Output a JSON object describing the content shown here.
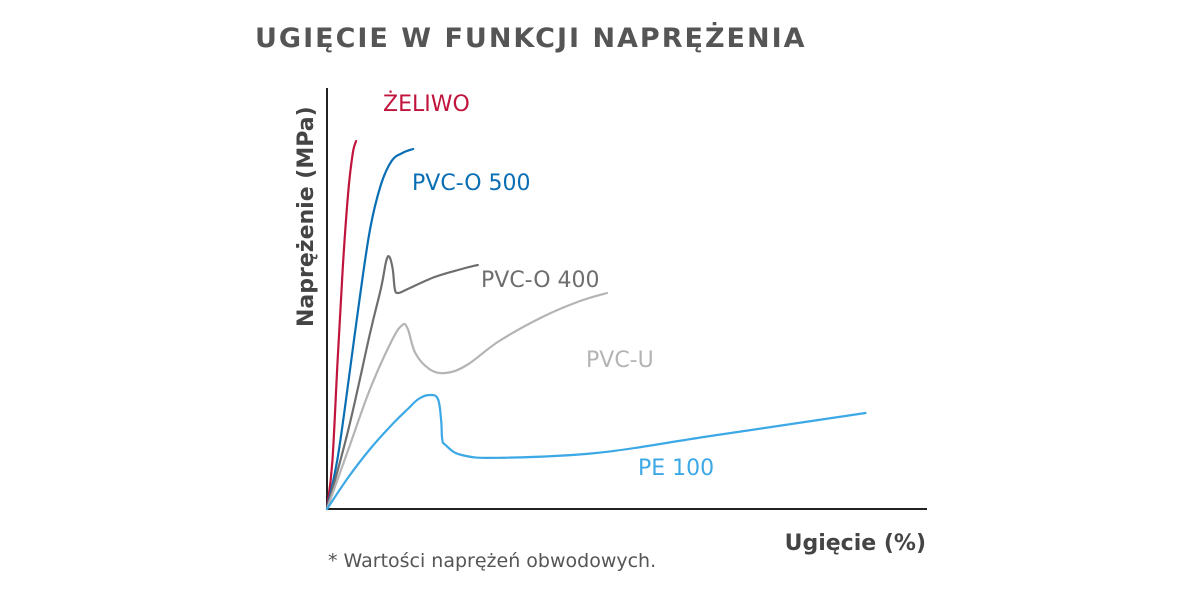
{
  "chart_data": {
    "type": "line",
    "title": "UGIĘCIE W FUNKCJI NAPRĘŻENIA",
    "xlabel": "Ugięcie (%)",
    "ylabel": "Naprężenie (MPa)",
    "footnote": "* Wartości naprężeń obwodowych.",
    "grid": false,
    "legend": "inline-labels",
    "series": [
      {
        "name": "ŻELIWO",
        "color": "#c0143c",
        "points": [
          [
            0,
            0
          ],
          [
            5,
            12
          ],
          [
            10,
            38
          ],
          [
            15,
            62
          ],
          [
            20,
            80
          ],
          [
            24,
            89
          ],
          [
            27,
            92
          ]
        ]
      },
      {
        "name": "PVC-O 500",
        "color": "#0a6eb4",
        "points": [
          [
            0,
            0
          ],
          [
            10,
            13
          ],
          [
            20,
            32
          ],
          [
            30,
            52
          ],
          [
            40,
            70
          ],
          [
            50,
            81
          ],
          [
            60,
            87
          ],
          [
            70,
            89
          ],
          [
            80,
            90
          ]
        ]
      },
      {
        "name": "PVC-O 400",
        "color": "#6e6e6e",
        "points": [
          [
            0,
            0
          ],
          [
            20,
            20
          ],
          [
            40,
            44
          ],
          [
            50,
            55
          ],
          [
            55,
            62
          ],
          [
            58,
            63
          ],
          [
            61,
            60
          ],
          [
            63,
            55
          ],
          [
            66,
            54
          ],
          [
            75,
            55
          ],
          [
            100,
            58
          ],
          [
            125,
            60
          ],
          [
            140,
            61
          ]
        ]
      },
      {
        "name": "PVC-U",
        "color": "#b4b4b4",
        "points": [
          [
            0,
            0
          ],
          [
            20,
            15
          ],
          [
            40,
            30
          ],
          [
            60,
            42
          ],
          [
            70,
            46
          ],
          [
            75,
            45
          ],
          [
            82,
            39
          ],
          [
            95,
            35
          ],
          [
            110,
            34
          ],
          [
            130,
            36
          ],
          [
            160,
            42
          ],
          [
            200,
            48
          ],
          [
            235,
            52
          ],
          [
            260,
            54
          ]
        ]
      },
      {
        "name": "PE 100",
        "color": "#3ca8e6",
        "points": [
          [
            0,
            0
          ],
          [
            20,
            8
          ],
          [
            40,
            15
          ],
          [
            60,
            21
          ],
          [
            75,
            25
          ],
          [
            85,
            27.5
          ],
          [
            95,
            28.5
          ],
          [
            103,
            27.5
          ],
          [
            106,
            22
          ],
          [
            107,
            17.5
          ],
          [
            110,
            16
          ],
          [
            125,
            13.5
          ],
          [
            160,
            12.8
          ],
          [
            250,
            14
          ],
          [
            350,
            18
          ],
          [
            450,
            22
          ],
          [
            500,
            24
          ]
        ]
      }
    ]
  }
}
